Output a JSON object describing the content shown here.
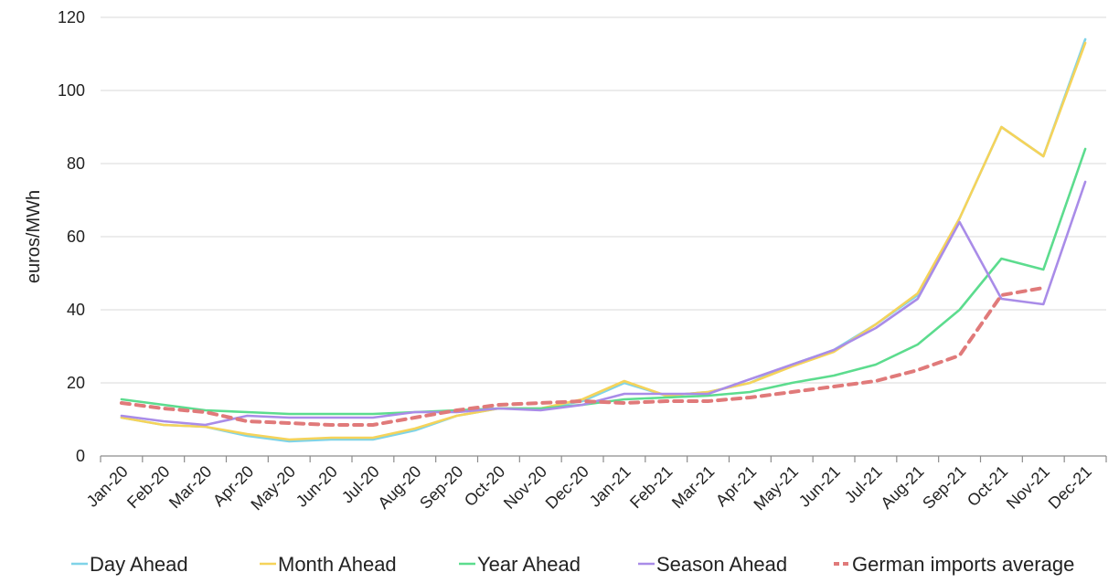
{
  "chart_data": {
    "type": "line",
    "ylabel": "euros/MWh",
    "ylim": [
      0,
      120
    ],
    "yticks": [
      0,
      20,
      40,
      60,
      80,
      100,
      120
    ],
    "grid": "horizontal",
    "legend_position": "bottom",
    "categories": [
      "Jan-20",
      "Feb-20",
      "Mar-20",
      "Apr-20",
      "May-20",
      "Jun-20",
      "Jul-20",
      "Aug-20",
      "Sep-20",
      "Oct-20",
      "Nov-20",
      "Dec-20",
      "Jan-21",
      "Feb-21",
      "Mar-21",
      "Apr-21",
      "May-21",
      "Jun-21",
      "Jul-21",
      "Aug-21",
      "Sep-21",
      "Oct-21",
      "Nov-21",
      "Dec-21"
    ],
    "series": [
      {
        "name": "Day Ahead",
        "color": "#7fd3e8",
        "dash": "solid",
        "values": [
          10.5,
          8.5,
          8,
          5.5,
          4,
          4.5,
          4.5,
          7,
          11,
          13,
          13,
          15,
          20,
          16.5,
          17.5,
          20,
          25,
          29,
          36,
          44,
          65,
          90,
          82,
          114
        ]
      },
      {
        "name": "Month Ahead",
        "color": "#f5d35a",
        "dash": "solid",
        "values": [
          10.5,
          8.5,
          8,
          6,
          4.5,
          5,
          5,
          7.5,
          11,
          13,
          13,
          15.5,
          20.5,
          16.5,
          17.5,
          20,
          24.5,
          28.5,
          36,
          44.5,
          65,
          90,
          82,
          113
        ]
      },
      {
        "name": "Year Ahead",
        "color": "#5cdc8e",
        "dash": "solid",
        "values": [
          15.5,
          14,
          12.5,
          12,
          11.5,
          11.5,
          11.5,
          12,
          12.5,
          13,
          13,
          14,
          15.5,
          16,
          16.5,
          17.5,
          20,
          22,
          25,
          30.5,
          40,
          54,
          51,
          84
        ]
      },
      {
        "name": "Season Ahead",
        "color": "#a98ce8",
        "dash": "solid",
        "values": [
          11,
          9.5,
          8.5,
          11,
          10.5,
          10.5,
          10.5,
          12,
          12,
          13,
          12.5,
          14,
          17,
          17,
          17,
          21,
          25,
          29,
          35,
          43,
          64,
          43,
          41.5,
          75
        ]
      },
      {
        "name": "German imports average",
        "color": "#e07a7a",
        "dash": "dashed",
        "values": [
          14.5,
          13,
          12,
          9.5,
          9,
          8.5,
          8.5,
          10.5,
          12.5,
          14,
          14.5,
          15,
          14.5,
          15,
          15,
          16,
          17.5,
          19,
          20.5,
          23.5,
          27.5,
          44,
          46,
          null
        ]
      }
    ]
  }
}
